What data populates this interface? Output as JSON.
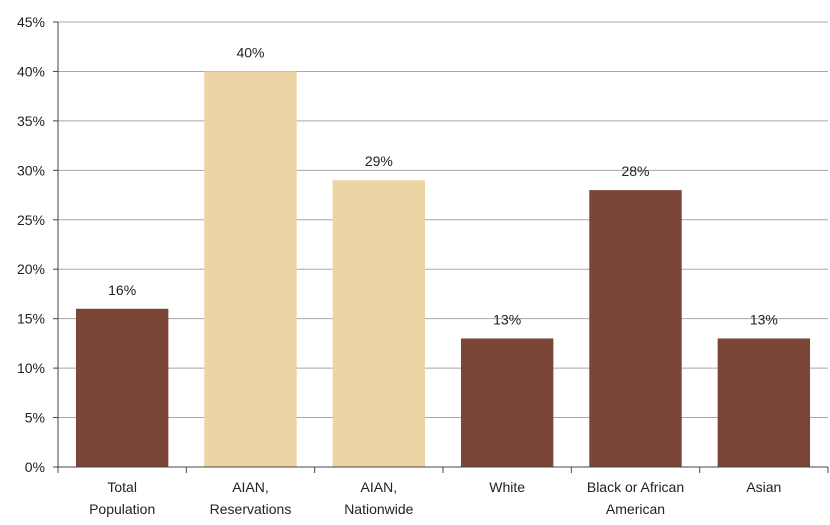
{
  "chart_data": {
    "type": "bar",
    "title": "",
    "xlabel": "",
    "ylabel": "",
    "ylim": [
      0,
      45
    ],
    "yticks": [
      0,
      5,
      10,
      15,
      20,
      25,
      30,
      35,
      40,
      45
    ],
    "ytick_labels": [
      "0%",
      "5%",
      "10%",
      "15%",
      "20%",
      "25%",
      "30%",
      "35%",
      "40%",
      "45%"
    ],
    "grid": true,
    "legend": "none",
    "categories": [
      [
        "Total",
        "Population"
      ],
      [
        "AIAN,",
        "Reservations"
      ],
      [
        "AIAN,",
        "Nationwide"
      ],
      [
        "White"
      ],
      [
        "Black or African",
        "American"
      ],
      [
        "Asian"
      ]
    ],
    "values": [
      16,
      40,
      29,
      13,
      28,
      13
    ],
    "data_labels": [
      "16%",
      "40%",
      "29%",
      "13%",
      "28%",
      "13%"
    ],
    "colors": [
      "#7b4538",
      "#ecd4a4",
      "#ecd4a4",
      "#7b4538",
      "#7b4538",
      "#7b4538"
    ]
  }
}
